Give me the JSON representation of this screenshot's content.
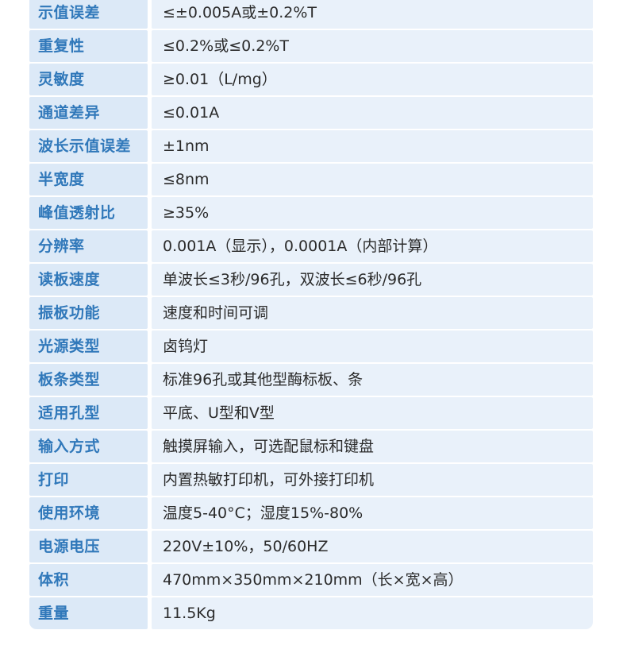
{
  "colors": {
    "page_bg": "#ffffff",
    "label_cell_bg": "#dce9f7",
    "value_cell_bg": "#e9f1fa",
    "label_text": "#3078ba",
    "value_text": "#2b2b2b",
    "row_separator": "#ffffff"
  },
  "table": {
    "rows": [
      {
        "label": "示值误差",
        "value": "≤±0.005A或±0.2%T"
      },
      {
        "label": "重复性",
        "value": "≤0.2%或≤0.2%T"
      },
      {
        "label": "灵敏度",
        "value": "≥0.01（L/mg）"
      },
      {
        "label": "通道差异",
        "value": "≤0.01A"
      },
      {
        "label": "波长示值误差",
        "value": "±1nm"
      },
      {
        "label": "半宽度",
        "value": "≤8nm"
      },
      {
        "label": "峰值透射比",
        "value": "≥35%"
      },
      {
        "label": "分辨率",
        "value": "0.001A（显示），0.0001A（内部计算）"
      },
      {
        "label": "读板速度",
        "value": "单波长≤3秒/96孔，双波长≤6秒/96孔"
      },
      {
        "label": "振板功能",
        "value": "速度和时间可调"
      },
      {
        "label": "光源类型",
        "value": "卤钨灯"
      },
      {
        "label": "板条类型",
        "value": "标准96孔或其他型酶标板、条"
      },
      {
        "label": "适用孔型",
        "value": "平底、U型和V型"
      },
      {
        "label": "输入方式",
        "value": "触摸屏输入，可选配鼠标和键盘"
      },
      {
        "label": "打印",
        "value": "内置热敏打印机，可外接打印机"
      },
      {
        "label": "使用环境",
        "value": "温度5-40°C；湿度15%-80%"
      },
      {
        "label": "电源电压",
        "value": "220V±10%，50/60HZ"
      },
      {
        "label": "体积",
        "value": "470mm×350mm×210mm（长×宽×高）"
      },
      {
        "label": "重量",
        "value": "11.5Kg"
      }
    ]
  }
}
